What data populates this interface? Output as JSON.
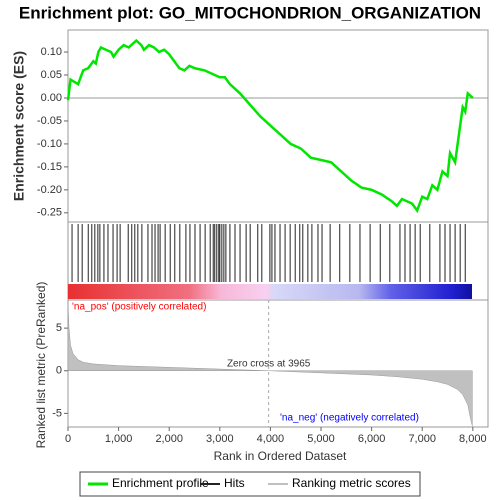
{
  "chart_data": [
    {
      "type": "line",
      "title": "Enrichment plot: GO_MITOCHONDRION_ORGANIZATION",
      "ylabel": "Enrichment score (ES)",
      "xlim": [
        0,
        8300
      ],
      "ylim": [
        -0.27,
        0.148
      ],
      "yticks": [
        {
          "value": 0.1,
          "label": "0.10"
        },
        0.05,
        {
          "value": 0,
          "label": "0.00"
        },
        -0.05,
        {
          "value": -0.1,
          "label": "-0.10"
        },
        -0.15,
        {
          "value": -0.2,
          "label": "-0.20"
        },
        -0.25
      ],
      "series": [
        {
          "name": "Enrichment profile",
          "color": "#00e600",
          "x": [
            0,
            50,
            200,
            300,
            400,
            500,
            550,
            600,
            650,
            750,
            850,
            900,
            1000,
            1100,
            1200,
            1300,
            1350,
            1450,
            1500,
            1600,
            1700,
            1800,
            1900,
            2000,
            2100,
            2200,
            2300,
            2400,
            2500,
            2700,
            2900,
            3000,
            3100,
            3200,
            3400,
            3600,
            3800,
            4000,
            4200,
            4400,
            4600,
            4800,
            5000,
            5200,
            5400,
            5600,
            5800,
            6000,
            6200,
            6400,
            6500,
            6600,
            6800,
            6900,
            7000,
            7100,
            7200,
            7300,
            7400,
            7500,
            7550,
            7650,
            7700,
            7750,
            7800,
            7850,
            7900,
            7950,
            8000
          ],
          "values": [
            -0.005,
            0.04,
            0.03,
            0.06,
            0.065,
            0.08,
            0.075,
            0.1,
            0.11,
            0.105,
            0.1,
            0.09,
            0.105,
            0.115,
            0.11,
            0.12,
            0.125,
            0.115,
            0.105,
            0.115,
            0.11,
            0.1,
            0.105,
            0.095,
            0.08,
            0.065,
            0.06,
            0.07,
            0.065,
            0.06,
            0.05,
            0.045,
            0.045,
            0.03,
            0.01,
            -0.015,
            -0.04,
            -0.06,
            -0.08,
            -0.1,
            -0.11,
            -0.13,
            -0.135,
            -0.14,
            -0.16,
            -0.18,
            -0.195,
            -0.2,
            -0.21,
            -0.225,
            -0.235,
            -0.22,
            -0.23,
            -0.245,
            -0.215,
            -0.22,
            -0.19,
            -0.2,
            -0.16,
            -0.17,
            -0.12,
            -0.14,
            -0.1,
            -0.06,
            -0.02,
            -0.03,
            0.01,
            0.005,
            0.0
          ]
        }
      ]
    },
    {
      "type": "hits",
      "xlim": [
        0,
        8300
      ],
      "series": [
        {
          "name": "Hits",
          "color": "#222222",
          "x": [
            80,
            200,
            280,
            400,
            470,
            530,
            590,
            630,
            710,
            790,
            890,
            970,
            1030,
            1190,
            1260,
            1320,
            1380,
            1460,
            1580,
            1660,
            1720,
            1780,
            1820,
            1920,
            2020,
            2110,
            2210,
            2330,
            2410,
            2510,
            2610,
            2710,
            2810,
            2870,
            2900,
            2940,
            2980,
            3000,
            3040,
            3080,
            3120,
            3200,
            3300,
            3400,
            3520,
            3600,
            3750,
            3830,
            3990,
            4030,
            4090,
            4190,
            4290,
            4390,
            4490,
            4580,
            4640,
            4740,
            4820,
            4940,
            5020,
            5180,
            5370,
            5570,
            5770,
            5970,
            6170,
            6360,
            6560,
            6660,
            6760,
            6860,
            6960,
            7150,
            7350,
            7450,
            7550,
            7650,
            7750,
            7850
          ]
        }
      ]
    },
    {
      "type": "area",
      "ylabel": "Ranked list metric (PreRanked)",
      "xlabel": "Rank in Ordered Dataset",
      "xlim": [
        0,
        8300
      ],
      "ylim": [
        -6.6,
        8.3
      ],
      "xticks": [
        0,
        {
          "value": 1000,
          "label": "1,000"
        },
        {
          "value": 2000,
          "label": "2,000"
        },
        {
          "value": 3000,
          "label": "3,000"
        },
        {
          "value": 4000,
          "label": "4,000"
        },
        {
          "value": 5000,
          "label": "5,000"
        },
        {
          "value": 6000,
          "label": "6,000"
        },
        {
          "value": 7000,
          "label": "7,000"
        },
        {
          "value": 8000,
          "label": "8,000"
        }
      ],
      "yticks": [
        5,
        0,
        -5
      ],
      "series": [
        {
          "name": "Ranking metric scores",
          "color": "#c0c0c0",
          "x": [
            0,
            20,
            50,
            100,
            200,
            300,
            500,
            1000,
            2000,
            3000,
            3965,
            5000,
            6000,
            6500,
            7000,
            7300,
            7500,
            7700,
            7800,
            7900,
            7950,
            7990
          ],
          "values": [
            8,
            5,
            3,
            2,
            1.3,
            1.0,
            0.8,
            0.6,
            0.4,
            0.2,
            0,
            -0.25,
            -0.5,
            -0.7,
            -1.0,
            -1.3,
            -1.6,
            -2.2,
            -2.8,
            -4,
            -5.5,
            -6.5
          ]
        }
      ],
      "zero_cross": {
        "value": 3965,
        "label": "Zero cross at 3965"
      },
      "annotations": [
        {
          "text": "'na_pos' (positively correlated)",
          "color": "#ff0000"
        },
        {
          "text": "'na_neg' (negatively correlated)",
          "color": "#0000ff"
        }
      ]
    }
  ]
}
